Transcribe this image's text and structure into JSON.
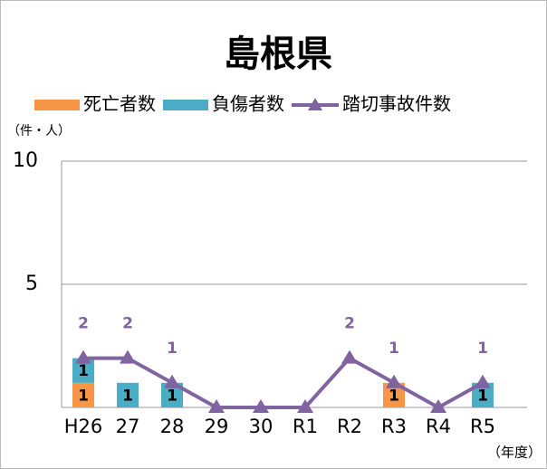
{
  "chart_data": {
    "type": "bar",
    "title": "島根県",
    "y_axis_label": "（件・人）",
    "x_axis_label": "（年度）",
    "categories": [
      "H26",
      "27",
      "28",
      "29",
      "30",
      "R1",
      "R2",
      "R3",
      "R4",
      "R5"
    ],
    "series": [
      {
        "name": "死亡者数",
        "color": "#f79646",
        "type": "bar",
        "values": [
          1,
          0,
          0,
          0,
          0,
          0,
          0,
          1,
          0,
          0
        ]
      },
      {
        "name": "負傷者数",
        "color": "#4bacc6",
        "type": "bar",
        "values": [
          1,
          1,
          1,
          0,
          0,
          0,
          0,
          0,
          0,
          1
        ]
      },
      {
        "name": "踏切事故件数",
        "color": "#8064a2",
        "type": "line",
        "values": [
          2,
          2,
          1,
          0,
          0,
          0,
          2,
          1,
          0,
          1
        ]
      }
    ],
    "ylim": [
      0,
      10
    ],
    "yticks": [
      5,
      10
    ],
    "grid": true
  }
}
